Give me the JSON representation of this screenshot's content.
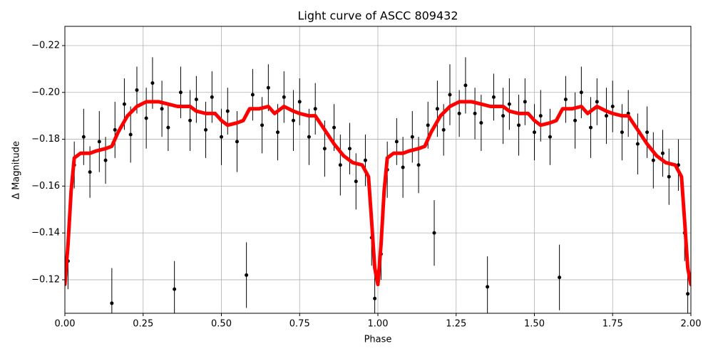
{
  "chart_data": {
    "type": "scatter",
    "title": "Light curve of ASCC 809432",
    "x_label": "Phase",
    "y_label": "Δ Magnitude",
    "xlim": [
      0,
      2
    ],
    "ylim": [
      -0.1057,
      -0.2282
    ],
    "xticks": [
      {
        "value": 0,
        "label": "0.00"
      },
      {
        "value": 0.25,
        "label": "0.25"
      },
      {
        "value": 0.5,
        "label": "0.50"
      },
      {
        "value": 0.75,
        "label": "0.75"
      },
      {
        "value": 1,
        "label": "1.00"
      },
      {
        "value": 1.25,
        "label": "1.25"
      },
      {
        "value": 1.5,
        "label": "1.50"
      },
      {
        "value": 1.75,
        "label": "1.75"
      },
      {
        "value": 2,
        "label": "2.00"
      }
    ],
    "yticks": [
      {
        "value": -0.22,
        "label": "−0.22"
      },
      {
        "value": -0.2,
        "label": "−0.20"
      },
      {
        "value": -0.18,
        "label": "−0.18"
      },
      {
        "value": -0.16,
        "label": "−0.16"
      },
      {
        "value": -0.14,
        "label": "−0.14"
      },
      {
        "value": -0.12,
        "label": "−0.12"
      }
    ],
    "grid": true,
    "series": [
      {
        "type": "errorbar",
        "color": "#000000",
        "x": [
          0.01,
          0.03,
          0.06,
          0.08,
          0.11,
          0.13,
          0.15,
          0.16,
          0.19,
          0.21,
          0.23,
          0.26,
          0.28,
          0.31,
          0.33,
          0.35,
          0.37,
          0.4,
          0.42,
          0.45,
          0.47,
          0.5,
          0.52,
          0.55,
          0.58,
          0.6,
          0.63,
          0.65,
          0.68,
          0.7,
          0.73,
          0.75,
          0.78,
          0.8,
          0.83,
          0.86,
          0.88,
          0.91,
          0.93,
          0.96,
          0.98,
          0.99,
          1.01,
          1.03,
          1.06,
          1.08,
          1.11,
          1.13,
          1.16,
          1.18,
          1.19,
          1.21,
          1.23,
          1.26,
          1.28,
          1.31,
          1.33,
          1.35,
          1.37,
          1.4,
          1.42,
          1.45,
          1.47,
          1.5,
          1.52,
          1.55,
          1.58,
          1.6,
          1.63,
          1.65,
          1.68,
          1.7,
          1.73,
          1.75,
          1.78,
          1.8,
          1.83,
          1.86,
          1.88,
          1.91,
          1.93,
          1.96,
          1.98,
          1.99
        ],
        "values": [
          -0.128,
          -0.169,
          -0.181,
          -0.166,
          -0.179,
          -0.171,
          -0.11,
          -0.184,
          -0.195,
          -0.182,
          -0.201,
          -0.189,
          -0.204,
          -0.193,
          -0.185,
          -0.116,
          -0.2,
          -0.188,
          -0.197,
          -0.184,
          -0.198,
          -0.181,
          -0.192,
          -0.179,
          -0.122,
          -0.199,
          -0.186,
          -0.202,
          -0.183,
          -0.198,
          -0.188,
          -0.196,
          -0.181,
          -0.193,
          -0.176,
          -0.185,
          -0.169,
          -0.176,
          -0.162,
          -0.171,
          -0.138,
          -0.112,
          -0.131,
          -0.167,
          -0.179,
          -0.168,
          -0.181,
          -0.169,
          -0.186,
          -0.14,
          -0.193,
          -0.184,
          -0.199,
          -0.191,
          -0.203,
          -0.191,
          -0.187,
          -0.117,
          -0.198,
          -0.19,
          -0.195,
          -0.186,
          -0.196,
          -0.183,
          -0.19,
          -0.181,
          -0.121,
          -0.197,
          -0.188,
          -0.2,
          -0.185,
          -0.196,
          -0.19,
          -0.194,
          -0.183,
          -0.191,
          -0.178,
          -0.183,
          -0.171,
          -0.174,
          -0.164,
          -0.169,
          -0.14,
          -0.114
        ],
        "errors": [
          0.012,
          0.01,
          0.012,
          0.011,
          0.013,
          0.01,
          0.015,
          0.012,
          0.011,
          0.012,
          0.01,
          0.013,
          0.011,
          0.012,
          0.01,
          0.012,
          0.011,
          0.013,
          0.01,
          0.012,
          0.011,
          0.012,
          0.01,
          0.013,
          0.014,
          0.011,
          0.012,
          0.01,
          0.012,
          0.011,
          0.013,
          0.01,
          0.012,
          0.011,
          0.012,
          0.01,
          0.013,
          0.011,
          0.012,
          0.011,
          0.012,
          0.01,
          0.011,
          0.012,
          0.01,
          0.013,
          0.011,
          0.012,
          0.01,
          0.014,
          0.012,
          0.011,
          0.013,
          0.01,
          0.012,
          0.011,
          0.012,
          0.013,
          0.01,
          0.012,
          0.011,
          0.013,
          0.01,
          0.012,
          0.011,
          0.012,
          0.014,
          0.01,
          0.012,
          0.011,
          0.013,
          0.01,
          0.012,
          0.011,
          0.012,
          0.01,
          0.013,
          0.011,
          0.012,
          0.01,
          0.012,
          0.011,
          0.012,
          0.01
        ]
      },
      {
        "type": "line",
        "color": "#ff0000",
        "x": [
          0.0,
          0.01,
          0.02,
          0.03,
          0.05,
          0.08,
          0.1,
          0.13,
          0.15,
          0.17,
          0.2,
          0.23,
          0.26,
          0.3,
          0.33,
          0.36,
          0.4,
          0.42,
          0.45,
          0.48,
          0.5,
          0.52,
          0.55,
          0.57,
          0.59,
          0.62,
          0.65,
          0.67,
          0.7,
          0.73,
          0.75,
          0.78,
          0.8,
          0.83,
          0.86,
          0.89,
          0.92,
          0.95,
          0.97,
          0.98,
          0.99,
          1.0,
          1.01,
          1.02,
          1.03,
          1.05,
          1.08,
          1.1,
          1.13,
          1.15,
          1.17,
          1.2,
          1.23,
          1.26,
          1.3,
          1.33,
          1.36,
          1.4,
          1.42,
          1.45,
          1.48,
          1.5,
          1.52,
          1.55,
          1.57,
          1.59,
          1.62,
          1.65,
          1.67,
          1.7,
          1.73,
          1.75,
          1.78,
          1.8,
          1.83,
          1.86,
          1.89,
          1.92,
          1.95,
          1.97,
          1.98,
          1.99,
          2.0
        ],
        "values": [
          -0.118,
          -0.135,
          -0.158,
          -0.172,
          -0.174,
          -0.174,
          -0.175,
          -0.176,
          -0.177,
          -0.183,
          -0.19,
          -0.194,
          -0.196,
          -0.196,
          -0.195,
          -0.194,
          -0.194,
          -0.192,
          -0.191,
          -0.191,
          -0.188,
          -0.186,
          -0.187,
          -0.188,
          -0.193,
          -0.193,
          -0.194,
          -0.191,
          -0.194,
          -0.192,
          -0.191,
          -0.19,
          -0.19,
          -0.184,
          -0.178,
          -0.173,
          -0.17,
          -0.169,
          -0.164,
          -0.145,
          -0.125,
          -0.118,
          -0.135,
          -0.158,
          -0.172,
          -0.174,
          -0.174,
          -0.175,
          -0.176,
          -0.177,
          -0.183,
          -0.19,
          -0.194,
          -0.196,
          -0.196,
          -0.195,
          -0.194,
          -0.194,
          -0.192,
          -0.191,
          -0.191,
          -0.188,
          -0.186,
          -0.187,
          -0.188,
          -0.193,
          -0.193,
          -0.194,
          -0.191,
          -0.194,
          -0.192,
          -0.191,
          -0.19,
          -0.19,
          -0.184,
          -0.178,
          -0.173,
          -0.17,
          -0.169,
          -0.164,
          -0.145,
          -0.125,
          -0.118
        ]
      }
    ]
  }
}
